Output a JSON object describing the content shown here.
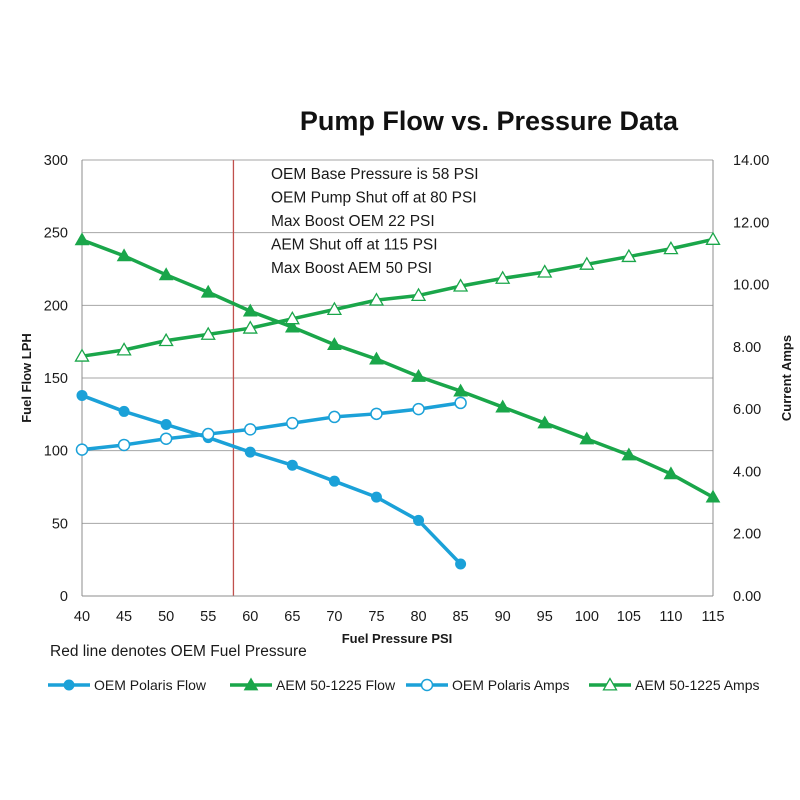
{
  "chart_data": {
    "type": "line",
    "title": "Pump Flow vs. Pressure Data",
    "xlabel": "Fuel Pressure PSI",
    "ylabel_left": "Fuel Flow LPH",
    "ylabel_right": "Current Amps",
    "x_ticks": [
      "40",
      "45",
      "50",
      "55",
      "60",
      "65",
      "70",
      "75",
      "80",
      "85",
      "90",
      "95",
      "100",
      "105",
      "110",
      "115"
    ],
    "xlim": [
      40,
      115
    ],
    "y_left_ticks": [
      "0",
      "50",
      "100",
      "150",
      "200",
      "250",
      "300"
    ],
    "ylim_left": [
      0,
      300
    ],
    "y_right_ticks": [
      "0.00",
      "2.00",
      "4.00",
      "6.00",
      "8.00",
      "10.00",
      "12.00",
      "14.00"
    ],
    "ylim_right": [
      0,
      14
    ],
    "grid": "horizontal",
    "legend_position": "bottom",
    "reference_line": {
      "x": 58,
      "color": "#c0504d"
    },
    "annotations": [
      "OEM Base Pressure is 58 PSI",
      "OEM Pump Shut off at 80 PSI",
      "Max Boost OEM 22 PSI",
      "AEM Shut off at 115 PSI",
      "Max Boost AEM 50 PSI"
    ],
    "footnote": "Red line denotes OEM Fuel Pressure",
    "series": [
      {
        "name": "OEM Polaris Flow",
        "axis": "left",
        "color": "#1ba1d8",
        "marker": "filled-circle",
        "x": [
          40,
          45,
          50,
          55,
          60,
          65,
          70,
          75,
          80,
          85
        ],
        "values": [
          138,
          127,
          118,
          109,
          99,
          90,
          79,
          68,
          52,
          22
        ]
      },
      {
        "name": "AEM 50-1225 Flow",
        "axis": "left",
        "color": "#1aa64a",
        "marker": "filled-triangle",
        "x": [
          40,
          45,
          50,
          55,
          60,
          65,
          70,
          75,
          80,
          85,
          90,
          95,
          100,
          105,
          110,
          115
        ],
        "values": [
          245,
          234,
          221,
          209,
          196,
          185,
          173,
          163,
          151,
          141,
          130,
          119,
          108,
          97,
          84,
          68
        ]
      },
      {
        "name": "OEM Polaris Amps",
        "axis": "right",
        "color": "#1ba1d8",
        "marker": "open-circle",
        "x": [
          40,
          45,
          50,
          55,
          60,
          65,
          70,
          75,
          80,
          85
        ],
        "values": [
          4.7,
          4.85,
          5.05,
          5.2,
          5.35,
          5.55,
          5.75,
          5.85,
          6.0,
          6.2
        ]
      },
      {
        "name": "AEM 50-1225 Amps",
        "axis": "right",
        "color": "#1aa64a",
        "marker": "open-triangle",
        "x": [
          40,
          45,
          50,
          55,
          60,
          65,
          70,
          75,
          80,
          85,
          90,
          95,
          100,
          105,
          110,
          115
        ],
        "values": [
          7.7,
          7.9,
          8.2,
          8.4,
          8.6,
          8.9,
          9.2,
          9.5,
          9.65,
          9.95,
          10.2,
          10.4,
          10.65,
          10.9,
          11.15,
          11.45
        ]
      }
    ]
  }
}
